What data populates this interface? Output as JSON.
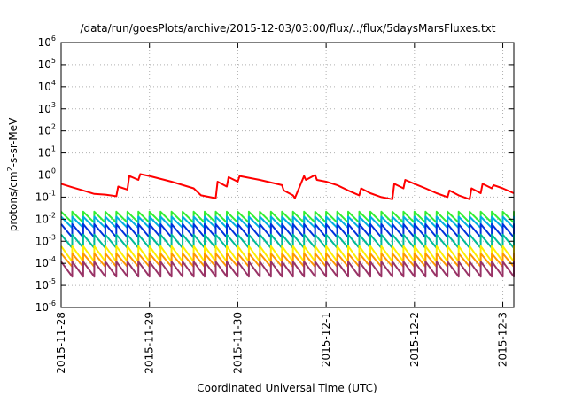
{
  "chart_data": {
    "type": "line",
    "title": "/data/run/goesPlots/archive/2015-12-03/03:00/flux/../flux/5daysMarsFluxes.txt",
    "xlabel": "Coordinated Universal Time (UTC)",
    "ylabel_main": "protons/cm",
    "ylabel_sup": "2",
    "ylabel_tail": "-s-sr-MeV",
    "y_scale": "log",
    "ylim": [
      1e-06,
      1000000.0
    ],
    "xlim": [
      "2015-11-28 00:00",
      "2015-12-03 03:00"
    ],
    "grid": true,
    "y_ticks": [
      {
        "base": "10",
        "exp": "-6",
        "value": 1e-06
      },
      {
        "base": "10",
        "exp": "-5",
        "value": 1e-05
      },
      {
        "base": "10",
        "exp": "-4",
        "value": 0.0001
      },
      {
        "base": "10",
        "exp": "-3",
        "value": 0.001
      },
      {
        "base": "10",
        "exp": "-2",
        "value": 0.01
      },
      {
        "base": "10",
        "exp": "-1",
        "value": 0.1
      },
      {
        "base": "10",
        "exp": "0",
        "value": 1
      },
      {
        "base": "10",
        "exp": "1",
        "value": 10
      },
      {
        "base": "10",
        "exp": "2",
        "value": 100
      },
      {
        "base": "10",
        "exp": "3",
        "value": 1000
      },
      {
        "base": "10",
        "exp": "4",
        "value": 10000
      },
      {
        "base": "10",
        "exp": "5",
        "value": 100000
      },
      {
        "base": "10",
        "exp": "6",
        "value": 1000000
      }
    ],
    "x_ticks": [
      {
        "label": "2015-11-28",
        "value": "2015-11-28 00:00"
      },
      {
        "label": "2015-11-29",
        "value": "2015-11-29 00:00"
      },
      {
        "label": "2015-11-30",
        "value": "2015-11-30 00:00"
      },
      {
        "label": "2015-12-1",
        "value": "2015-12-01 00:00"
      },
      {
        "label": "2015-12-2",
        "value": "2015-12-02 00:00"
      },
      {
        "label": "2015-12-3",
        "value": "2015-12-03 00:00"
      }
    ],
    "series": [
      {
        "color": "#ff0000",
        "x": [
          "2015-11-28 00:00",
          "2015-11-28 03:00",
          "2015-11-28 06:00",
          "2015-11-28 09:00",
          "2015-11-28 12:00",
          "2015-11-28 15:00",
          "2015-11-28 15:30",
          "2015-11-28 18:00",
          "2015-11-28 18:30",
          "2015-11-28 21:00",
          "2015-11-28 21:30",
          "2015-11-29 00:00",
          "2015-11-29 06:00",
          "2015-11-29 12:00",
          "2015-11-29 14:00",
          "2015-11-29 18:00",
          "2015-11-29 18:30",
          "2015-11-29 21:00",
          "2015-11-29 21:30",
          "2015-11-30 00:00",
          "2015-11-30 00:30",
          "2015-11-30 06:00",
          "2015-11-30 12:00",
          "2015-11-30 12:30",
          "2015-11-30 15:00",
          "2015-11-30 15:30",
          "2015-11-30 18:00",
          "2015-11-30 18:30",
          "2015-11-30 21:00",
          "2015-11-30 21:30",
          "2015-12-01 00:00",
          "2015-12-01 03:00",
          "2015-12-01 06:00",
          "2015-12-01 09:00",
          "2015-12-01 09:30",
          "2015-12-01 12:00",
          "2015-12-01 15:00",
          "2015-12-01 18:00",
          "2015-12-01 18:30",
          "2015-12-01 21:00",
          "2015-12-01 21:30",
          "2015-12-02 00:00",
          "2015-12-02 03:00",
          "2015-12-02 06:00",
          "2015-12-02 09:00",
          "2015-12-02 09:30",
          "2015-12-02 12:00",
          "2015-12-02 15:00",
          "2015-12-02 15:30",
          "2015-12-02 18:00",
          "2015-12-02 18:30",
          "2015-12-02 21:00",
          "2015-12-02 21:30",
          "2015-12-03 00:00",
          "2015-12-03 03:00"
        ],
        "y": [
          0.4,
          0.28,
          0.2,
          0.14,
          0.13,
          0.11,
          0.3,
          0.22,
          0.9,
          0.6,
          1.1,
          0.9,
          0.5,
          0.25,
          0.12,
          0.09,
          0.5,
          0.3,
          0.8,
          0.5,
          0.9,
          0.6,
          0.35,
          0.2,
          0.12,
          0.09,
          0.9,
          0.6,
          1.0,
          0.6,
          0.5,
          0.35,
          0.2,
          0.12,
          0.25,
          0.15,
          0.1,
          0.08,
          0.4,
          0.25,
          0.6,
          0.4,
          0.25,
          0.15,
          0.1,
          0.2,
          0.12,
          0.08,
          0.25,
          0.15,
          0.4,
          0.25,
          0.35,
          0.25,
          0.15
        ]
      },
      {
        "color": "#33ee33",
        "profile": "sawtooth",
        "x_start": "2015-11-28 00:00",
        "x_end": "2015-12-03 03:00",
        "period_hours": 3,
        "y_low": 0.007,
        "y_high": 0.022
      },
      {
        "color": "#00b0e0",
        "profile": "sawtooth",
        "x_start": "2015-11-28 00:00",
        "x_end": "2015-12-03 03:00",
        "period_hours": 3,
        "y_low": 0.004,
        "y_high": 0.013
      },
      {
        "color": "#0033dd",
        "profile": "sawtooth",
        "x_start": "2015-11-28 00:00",
        "x_end": "2015-12-03 03:00",
        "period_hours": 3,
        "y_low": 0.0015,
        "y_high": 0.006
      },
      {
        "color": "#00bb99",
        "profile": "sawtooth",
        "x_start": "2015-11-28 00:00",
        "x_end": "2015-12-03 03:00",
        "period_hours": 3,
        "y_low": 0.0005,
        "y_high": 0.002
      },
      {
        "color": "#ffee00",
        "profile": "sawtooth",
        "x_start": "2015-11-28 00:00",
        "x_end": "2015-12-03 03:00",
        "period_hours": 3,
        "y_low": 0.00012,
        "y_high": 0.0006
      },
      {
        "color": "#ff9900",
        "profile": "sawtooth",
        "x_start": "2015-11-28 00:00",
        "x_end": "2015-12-03 03:00",
        "period_hours": 3,
        "y_low": 7e-05,
        "y_high": 0.00028
      },
      {
        "color": "#993366",
        "profile": "sawtooth",
        "x_start": "2015-11-28 00:00",
        "x_end": "2015-12-03 03:00",
        "period_hours": 3,
        "y_low": 2.5e-05,
        "y_high": 0.00012
      }
    ]
  }
}
